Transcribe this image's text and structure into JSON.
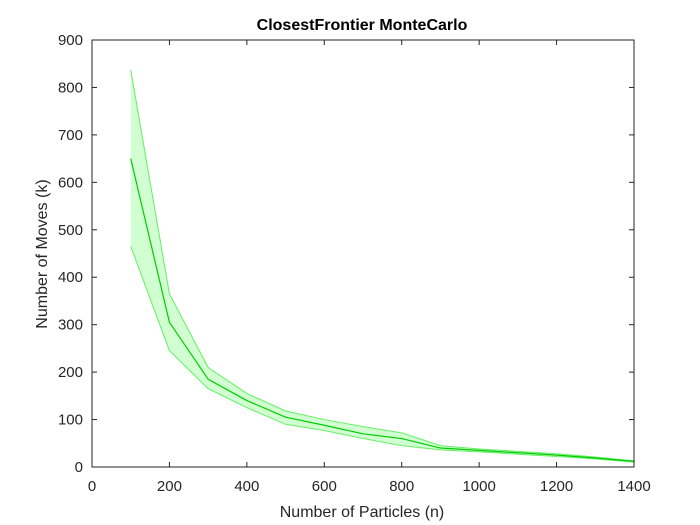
{
  "chart_data": {
    "type": "line",
    "title": "ClosestFrontier MonteCarlo",
    "xlabel": "Number of Particles (n)",
    "ylabel": "Number of Moves (k)",
    "xlim": [
      0,
      1400
    ],
    "ylim": [
      0,
      900
    ],
    "xticks": [
      0,
      200,
      400,
      600,
      800,
      1000,
      1200,
      1400
    ],
    "yticks": [
      0,
      100,
      200,
      300,
      400,
      500,
      600,
      700,
      800,
      900
    ],
    "grid": false,
    "colors": {
      "line": "#00cc00",
      "band_fill": "#66ff66",
      "band_edge": "#66ee66",
      "axis": "#262626"
    },
    "series": [
      {
        "x": [
          100,
          200,
          300,
          400,
          500,
          600,
          700,
          800,
          900,
          1000,
          1100,
          1200,
          1300,
          1400
        ],
        "values": [
          650,
          305,
          185,
          140,
          105,
          88,
          70,
          60,
          40,
          35,
          30,
          25,
          19,
          12
        ],
        "lower": [
          465,
          245,
          165,
          125,
          90,
          77,
          60,
          45,
          36,
          32,
          27,
          22,
          17,
          10
        ],
        "upper": [
          837,
          365,
          210,
          155,
          118,
          100,
          85,
          72,
          45,
          38,
          33,
          28,
          21,
          13
        ]
      }
    ]
  }
}
